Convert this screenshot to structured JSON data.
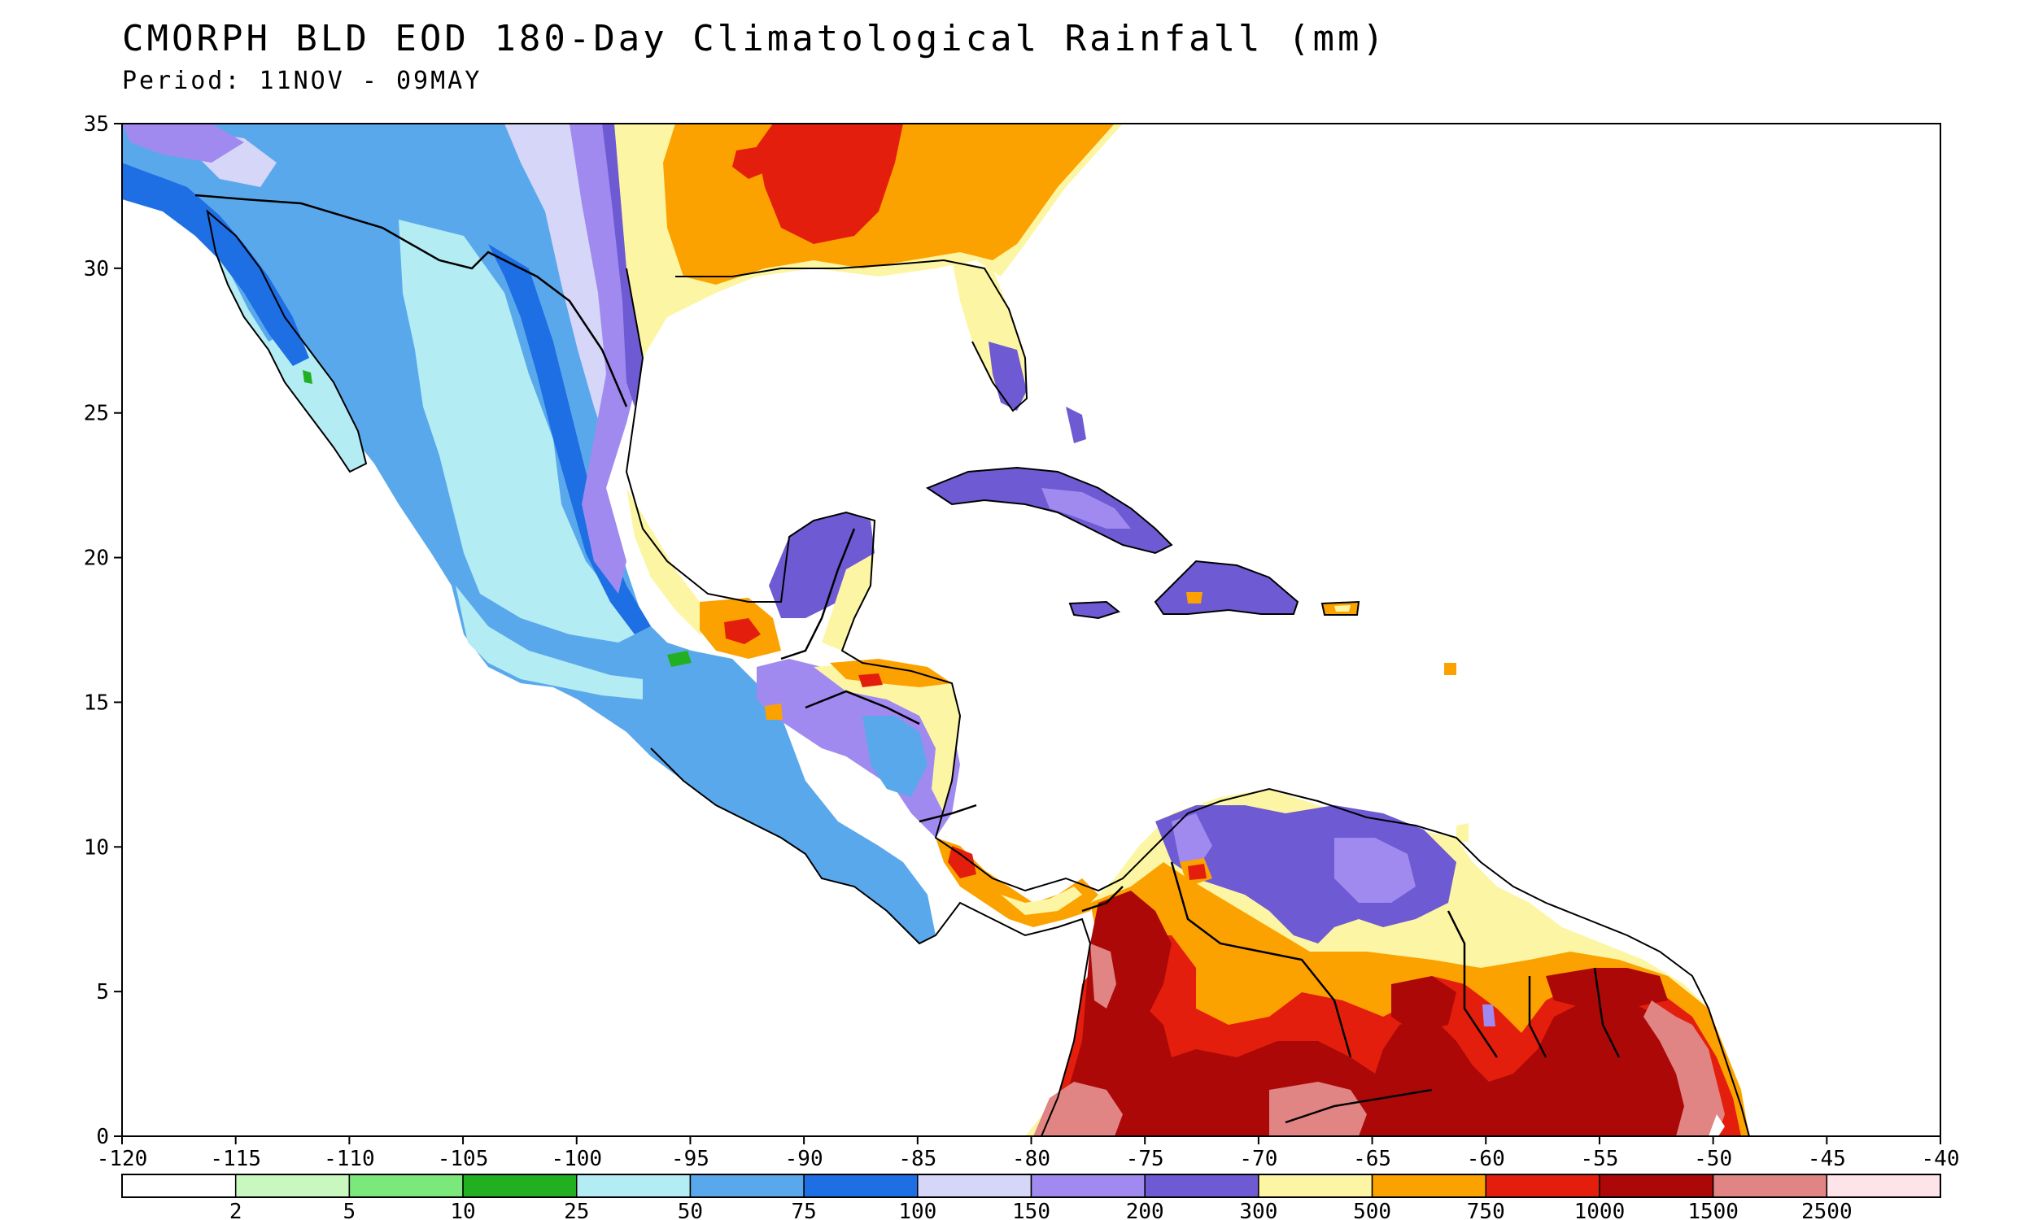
{
  "title": "CMORPH BLD EOD 180-Day Climatological Rainfall (mm)",
  "subtitle": "Period: 11NOV - 09MAY",
  "map": {
    "lon_range": [
      -120,
      -40
    ],
    "lat_range": [
      0,
      35
    ],
    "x_ticks": [
      "-120",
      "-115",
      "-110",
      "-105",
      "-100",
      "-95",
      "-90",
      "-85",
      "-80",
      "-75",
      "-70",
      "-65",
      "-60",
      "-55",
      "-50",
      "-45",
      "-40"
    ],
    "y_ticks": [
      "0",
      "5",
      "10",
      "15",
      "20",
      "25",
      "30",
      "35"
    ]
  },
  "legend": {
    "bins": [
      {
        "color": "#ffffff",
        "label": "2"
      },
      {
        "color": "#c8f8c0",
        "label": "5"
      },
      {
        "color": "#7ae87a",
        "label": "10"
      },
      {
        "color": "#22b022",
        "label": "25"
      },
      {
        "color": "#b4ecf4",
        "label": "50"
      },
      {
        "color": "#5aa8ec",
        "label": "75"
      },
      {
        "color": "#1e6ee4",
        "label": "100"
      },
      {
        "color": "#d6d6f8",
        "label": "150"
      },
      {
        "color": "#a08af0",
        "label": "200"
      },
      {
        "color": "#6e5ad2",
        "label": "300"
      },
      {
        "color": "#fcf6a4",
        "label": "500"
      },
      {
        "color": "#fca200",
        "label": "750"
      },
      {
        "color": "#e41e0c",
        "label": "1000"
      },
      {
        "color": "#ac0808",
        "label": "1500"
      },
      {
        "color": "#e08484",
        "label": "2500"
      },
      {
        "color": "#fce4e8",
        "label": ""
      }
    ]
  }
}
